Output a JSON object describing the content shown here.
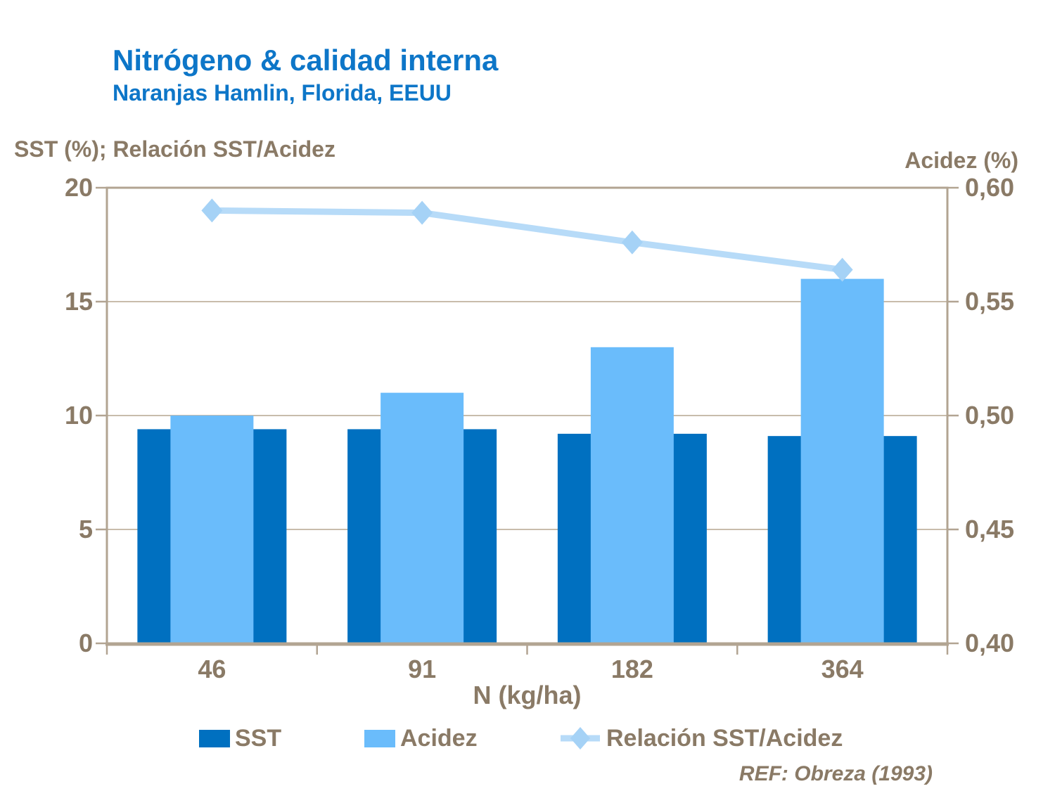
{
  "slide": {
    "title": "Nitrógeno & calidad interna",
    "subtitle": "Naranjas Hamlin, Florida, EEUU",
    "footer_ref": "REF: Obreza (1993)"
  },
  "colors": {
    "title_blue": "#0d76c8",
    "axis_text_brown": "#8a7a66",
    "gridline": "#c8bcab",
    "frame": "#b2a492",
    "sst_bar": "#0070c0",
    "acidez_bar": "#6abcfb",
    "ratio_line": "#b7dbf8",
    "ratio_marker": "#a5d2f6",
    "background": "#ffffff"
  },
  "chart_data": {
    "type": "bar",
    "subtype": "combo-bar-line-dual-axis",
    "title": "Nitrógeno & calidad interna",
    "subtitle": "Naranjas Hamlin, Florida, EEUU",
    "xlabel": "N (kg/ha)",
    "categories": [
      "46",
      "91",
      "182",
      "364"
    ],
    "left_axis": {
      "label": "SST (%); Relación SST/Acidez",
      "min": 0,
      "max": 20,
      "ticks": [
        {
          "text": "20",
          "value": 20
        },
        {
          "text": "15",
          "value": 15
        },
        {
          "text": "10",
          "value": 10
        },
        {
          "text": "5",
          "value": 5
        },
        {
          "text": "0",
          "value": 0
        }
      ]
    },
    "right_axis": {
      "label": "Acidez (%)",
      "min": 0.4,
      "max": 0.6,
      "ticks": [
        {
          "text": "0,60",
          "value": 0.6
        },
        {
          "text": "0,55",
          "value": 0.55
        },
        {
          "text": "0,50",
          "value": 0.5
        },
        {
          "text": "0,45",
          "value": 0.45
        },
        {
          "text": "0,40",
          "value": 0.4
        }
      ]
    },
    "series": [
      {
        "name": "SST",
        "type": "bar",
        "axis": "left",
        "color": "#0070c0",
        "values": [
          9.4,
          9.4,
          9.2,
          9.1
        ]
      },
      {
        "name": "Acidez",
        "type": "bar",
        "axis": "right",
        "color": "#6abcfb",
        "values": [
          0.5,
          0.51,
          0.53,
          0.56
        ]
      },
      {
        "name": "Relación SST/Acidez",
        "type": "line",
        "axis": "left",
        "color": "#b7dbf8",
        "marker_color": "#a5d2f6",
        "marker": "diamond",
        "values": [
          19.0,
          18.9,
          17.6,
          16.4
        ]
      }
    ],
    "grid": "horizontal",
    "legend_position": "bottom",
    "source": "REF: Obreza (1993)"
  }
}
